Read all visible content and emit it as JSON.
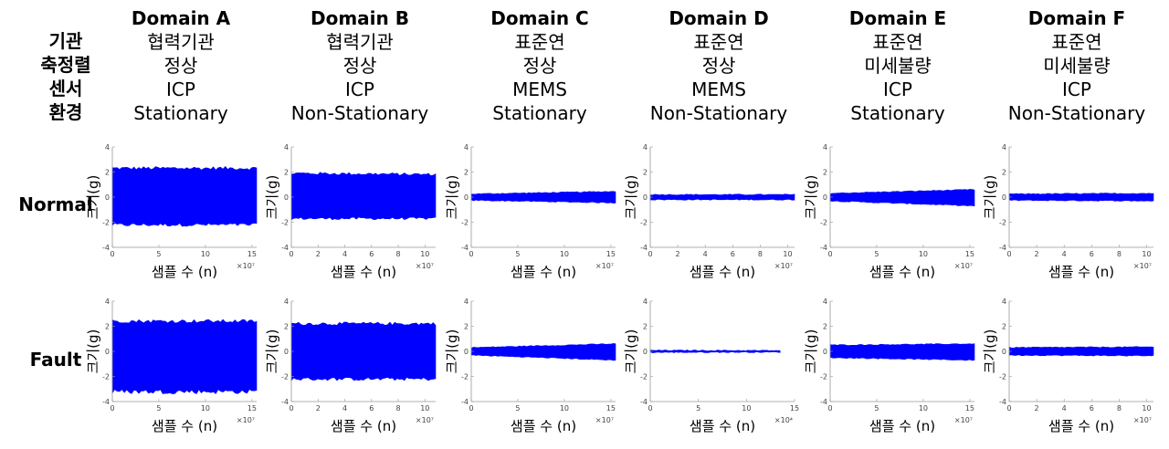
{
  "row_labels": [
    "기관",
    "축정렬",
    "센서",
    "환경"
  ],
  "states": [
    "Normal",
    "Fault"
  ],
  "domains": [
    {
      "name": "Domain A",
      "lines": [
        "협력기관",
        "정상",
        "ICP",
        "Stationary"
      ]
    },
    {
      "name": "Domain B",
      "lines": [
        "협력기관",
        "정상",
        "ICP",
        "Non-Stationary"
      ]
    },
    {
      "name": "Domain C",
      "lines": [
        "표준연",
        "정상",
        "MEMS",
        "Stationary"
      ]
    },
    {
      "name": "Domain D",
      "lines": [
        "표준연",
        "정상",
        "MEMS",
        "Non-Stationary"
      ]
    },
    {
      "name": "Domain E",
      "lines": [
        "표준연",
        "미세불량",
        "ICP",
        "Stationary"
      ]
    },
    {
      "name": "Domain F",
      "lines": [
        "표준연",
        "미세불량",
        "ICP",
        "Non-Stationary"
      ]
    }
  ],
  "chart_data": [
    {
      "type": "area",
      "domain": "Domain A",
      "state": "Normal",
      "xlabel": "샘플 수 (n)",
      "ylabel": "크기(g)",
      "ylim": [
        -4,
        4
      ],
      "xlim": [
        0,
        15.5
      ],
      "x_ticks": [
        0,
        5,
        10,
        15
      ],
      "x_exponent": "×10⁷",
      "y_ticks": [
        -4,
        -2,
        0,
        2,
        4
      ],
      "envelope": {
        "x": [
          0,
          15.5
        ],
        "upper": [
          2.3,
          2.3
        ],
        "lower": [
          -2.2,
          -2.2
        ]
      },
      "color": "#0000ff"
    },
    {
      "type": "area",
      "domain": "Domain B",
      "state": "Normal",
      "xlabel": "샘플 수 (n)",
      "ylabel": "크기(g)",
      "ylim": [
        -4,
        4
      ],
      "xlim": [
        0,
        10.8
      ],
      "x_ticks": [
        0,
        2,
        4,
        6,
        8,
        10
      ],
      "x_exponent": "×10⁷",
      "y_ticks": [
        -4,
        -2,
        0,
        2,
        4
      ],
      "envelope": {
        "x": [
          0,
          10.8
        ],
        "upper": [
          1.9,
          1.8
        ],
        "lower": [
          -1.7,
          -1.7
        ]
      },
      "color": "#0000ff"
    },
    {
      "type": "area",
      "domain": "Domain C",
      "state": "Normal",
      "xlabel": "샘플 수 (n)",
      "ylabel": "크기(g)",
      "ylim": [
        -4,
        4
      ],
      "xlim": [
        0,
        15.5
      ],
      "x_ticks": [
        0,
        5,
        10,
        15
      ],
      "x_exponent": "×10⁷",
      "y_ticks": [
        -4,
        -2,
        0,
        2,
        4
      ],
      "envelope": {
        "x": [
          0,
          15.5
        ],
        "upper": [
          0.25,
          0.45
        ],
        "lower": [
          -0.25,
          -0.45
        ]
      },
      "color": "#0000ff"
    },
    {
      "type": "area",
      "domain": "Domain D",
      "state": "Normal",
      "xlabel": "샘플 수 (n)",
      "ylabel": "크기(g)",
      "ylim": [
        -4,
        4
      ],
      "xlim": [
        0,
        10.5
      ],
      "x_ticks": [
        0,
        2,
        4,
        6,
        8,
        10
      ],
      "x_exponent": "×10⁷",
      "y_ticks": [
        -4,
        -2,
        0,
        2,
        4
      ],
      "envelope": {
        "x": [
          0,
          10.5
        ],
        "upper": [
          0.2,
          0.2
        ],
        "lower": [
          -0.2,
          -0.2
        ]
      },
      "color": "#0000ff"
    },
    {
      "type": "area",
      "domain": "Domain E",
      "state": "Normal",
      "xlabel": "샘플 수 (n)",
      "ylabel": "크기(g)",
      "ylim": [
        -4,
        4
      ],
      "xlim": [
        0,
        15.5
      ],
      "x_ticks": [
        0,
        5,
        10,
        15
      ],
      "x_exponent": "×10⁷",
      "y_ticks": [
        -4,
        -2,
        0,
        2,
        4
      ],
      "envelope": {
        "x": [
          0,
          15.5
        ],
        "upper": [
          0.3,
          0.6
        ],
        "lower": [
          -0.3,
          -0.7
        ]
      },
      "color": "#0000ff"
    },
    {
      "type": "area",
      "domain": "Domain F",
      "state": "Normal",
      "xlabel": "샘플 수 (n)",
      "ylabel": "크기(g)",
      "ylim": [
        -4,
        4
      ],
      "xlim": [
        0,
        10.5
      ],
      "x_ticks": [
        0,
        2,
        4,
        6,
        8,
        10
      ],
      "x_exponent": "×10⁷",
      "y_ticks": [
        -4,
        -2,
        0,
        2,
        4
      ],
      "envelope": {
        "x": [
          0,
          10.5
        ],
        "upper": [
          0.25,
          0.3
        ],
        "lower": [
          -0.25,
          -0.3
        ]
      },
      "color": "#0000ff"
    },
    {
      "type": "area",
      "domain": "Domain A",
      "state": "Fault",
      "xlabel": "샘플 수 (n)",
      "ylabel": "크기(g)",
      "ylim": [
        -4,
        4
      ],
      "xlim": [
        0,
        15.5
      ],
      "x_ticks": [
        0,
        5,
        10,
        15
      ],
      "x_exponent": "×10⁷",
      "y_ticks": [
        -4,
        -2,
        0,
        2,
        4
      ],
      "envelope": {
        "x": [
          0,
          15.5
        ],
        "upper": [
          2.4,
          2.4
        ],
        "lower": [
          -3.2,
          -3.2
        ]
      },
      "color": "#0000ff"
    },
    {
      "type": "area",
      "domain": "Domain B",
      "state": "Fault",
      "xlabel": "샘플 수 (n)",
      "ylabel": "크기(g)",
      "ylim": [
        -4,
        4
      ],
      "xlim": [
        0,
        10.8
      ],
      "x_ticks": [
        0,
        2,
        4,
        6,
        8,
        10
      ],
      "x_exponent": "×10⁷",
      "y_ticks": [
        -4,
        -2,
        0,
        2,
        4
      ],
      "envelope": {
        "x": [
          0,
          10.8
        ],
        "upper": [
          2.2,
          2.2
        ],
        "lower": [
          -2.2,
          -2.2
        ]
      },
      "color": "#0000ff"
    },
    {
      "type": "area",
      "domain": "Domain C",
      "state": "Fault",
      "xlabel": "샘플 수 (n)",
      "ylabel": "크기(g)",
      "ylim": [
        -4,
        4
      ],
      "xlim": [
        0,
        15.5
      ],
      "x_ticks": [
        0,
        5,
        10,
        15
      ],
      "x_exponent": "×10⁷",
      "y_ticks": [
        -4,
        -2,
        0,
        2,
        4
      ],
      "envelope": {
        "x": [
          0,
          15.5
        ],
        "upper": [
          0.3,
          0.6
        ],
        "lower": [
          -0.3,
          -0.7
        ]
      },
      "color": "#0000ff"
    },
    {
      "type": "area",
      "domain": "Domain D",
      "state": "Fault",
      "xlabel": "샘플 수 (n)",
      "ylabel": "크기(g)",
      "ylim": [
        -4,
        4
      ],
      "xlim": [
        0,
        15
      ],
      "x_ticks": [
        0,
        5,
        10,
        15
      ],
      "x_exponent": "×10⁴",
      "y_ticks": [
        -4,
        -2,
        0,
        2,
        4
      ],
      "envelope": {
        "x": [
          0,
          13.5
        ],
        "upper": [
          0.08,
          0.06
        ],
        "lower": [
          -0.08,
          -0.06
        ]
      },
      "color": "#0000ff"
    },
    {
      "type": "area",
      "domain": "Domain E",
      "state": "Fault",
      "xlabel": "샘플 수 (n)",
      "ylabel": "크기(g)",
      "ylim": [
        -4,
        4
      ],
      "xlim": [
        0,
        15.5
      ],
      "x_ticks": [
        0,
        5,
        10,
        15
      ],
      "x_exponent": "×10⁷",
      "y_ticks": [
        -4,
        -2,
        0,
        2,
        4
      ],
      "envelope": {
        "x": [
          0,
          15.5
        ],
        "upper": [
          0.5,
          0.6
        ],
        "lower": [
          -0.5,
          -0.7
        ]
      },
      "color": "#0000ff"
    },
    {
      "type": "area",
      "domain": "Domain F",
      "state": "Fault",
      "xlabel": "샘플 수 (n)",
      "ylabel": "크기(g)",
      "ylim": [
        -4,
        4
      ],
      "xlim": [
        0,
        10.5
      ],
      "x_ticks": [
        0,
        2,
        4,
        6,
        8,
        10
      ],
      "x_exponent": "×10⁷",
      "y_ticks": [
        -4,
        -2,
        0,
        2,
        4
      ],
      "envelope": {
        "x": [
          0,
          10.5
        ],
        "upper": [
          0.3,
          0.35
        ],
        "lower": [
          -0.3,
          -0.35
        ]
      },
      "color": "#0000ff"
    }
  ]
}
